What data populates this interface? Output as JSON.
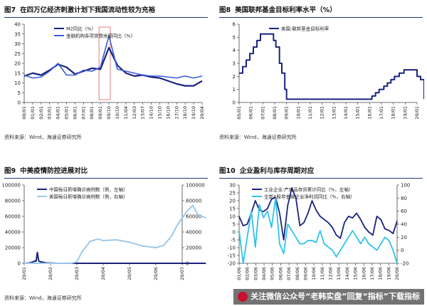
{
  "panels": [
    {
      "fig": "图7",
      "title": "在四万亿经济刺激计划下我国流动性较为充裕",
      "source": "资料来源：Wind，海通证券研究所"
    },
    {
      "fig": "图8",
      "title": "美国联邦基金目标利率水平（%）",
      "source": "资料来源：Wind，海通证券研究所"
    },
    {
      "fig": "图9",
      "title": "中美疫情防控进展对比",
      "source": "资料来源：Wind，海通证券研究所"
    },
    {
      "fig": "图10",
      "title": "企业盈利与库存周期对应",
      "source": ""
    }
  ],
  "watermark": {
    "text": "关注微信公众号“老韩实盘”回复“指标”下载指标"
  },
  "chart_data": [
    {
      "type": "line",
      "ylim": [
        0,
        40
      ],
      "yticks": [
        0,
        5,
        10,
        15,
        20,
        25,
        30,
        35,
        40
      ],
      "x_tick_labels": [
        "00/01",
        "01/01",
        "02/01",
        "03/01",
        "04/01",
        "05/01",
        "06/01",
        "07/01",
        "08/01",
        "09/01",
        "09/10",
        "10/10",
        "11/04",
        "12/03",
        "13/07",
        "14/10",
        "15/10",
        "16/10",
        "17/10",
        "18/10",
        "19/10",
        "20/04"
      ],
      "highlight": {
        "from_index": 9,
        "to_index": 10,
        "color": "#e08080"
      },
      "series": [
        {
          "name": "M2同比（%）",
          "color": "#1a237e",
          "width": 2.2,
          "values": [
            13.5,
            15,
            14,
            16.5,
            19.5,
            18,
            14.5,
            16,
            17.5,
            17,
            28,
            19,
            15,
            13.5,
            14,
            13,
            12.5,
            11,
            9.5,
            8.5,
            8.5,
            11
          ]
        },
        {
          "name": "金融机构各项贷款余额同比（%）",
          "color": "#3b5bdb",
          "width": 1.6,
          "values": [
            14,
            12.5,
            13,
            16,
            20,
            14,
            14,
            16.5,
            16,
            18,
            34,
            17,
            16,
            15,
            14,
            13.5,
            13.5,
            13,
            12.5,
            13.5,
            12.5,
            13.5
          ]
        }
      ]
    },
    {
      "type": "line",
      "ylim": [
        0,
        6
      ],
      "yticks": [
        0,
        1,
        2,
        3,
        4,
        5,
        6
      ],
      "x_tick_labels": [
        "05/01",
        "06/01",
        "07/01",
        "08/01",
        "09/01",
        "10/01",
        "11/01",
        "12/01",
        "13/01",
        "14/01",
        "15/01",
        "16/01",
        "17/01",
        "18/01",
        "19/01",
        "20/01"
      ],
      "step": true,
      "series": [
        {
          "name": "美国:联邦基金目标利率",
          "color": "#1a237e",
          "width": 2,
          "x": [
            0,
            0.3,
            0.6,
            0.9,
            1.2,
            1.5,
            1.8,
            2.3,
            2.7,
            2.9,
            3.1,
            3.4,
            3.6,
            3.85,
            4,
            4.5,
            5,
            6,
            7,
            8,
            9,
            10,
            10.9,
            11.2,
            11.5,
            11.8,
            12.2,
            12.5,
            12.8,
            13.1,
            13.5,
            13.9,
            14.6,
            15,
            15.3,
            15.6
          ],
          "values": [
            2.25,
            2.75,
            3.25,
            3.75,
            4.25,
            4.75,
            5.25,
            5.25,
            5.25,
            4.75,
            4.25,
            3.0,
            2.25,
            1.0,
            0.25,
            0.25,
            0.25,
            0.25,
            0.25,
            0.25,
            0.25,
            0.25,
            0.25,
            0.5,
            0.75,
            1.0,
            1.25,
            1.5,
            1.75,
            2.0,
            2.25,
            2.5,
            2.5,
            2.0,
            1.75,
            0.25
          ]
        }
      ]
    },
    {
      "type": "line",
      "ylim_left": [
        0,
        100000
      ],
      "yticks_left": [
        0,
        20000,
        40000,
        60000,
        80000,
        100000
      ],
      "ylim_right": [
        0,
        100000
      ],
      "yticks_right": [
        0,
        20000,
        40000,
        60000,
        80000,
        100000
      ],
      "x_tick_labels": [
        "20/01",
        "20/02",
        "20/03",
        "20/04",
        "20/05",
        "20/06",
        "20/07"
      ],
      "series": [
        {
          "name": "中国每日新增确诊病例数（例，左轴）",
          "color": "#1a237e",
          "width": 2,
          "axis": "left",
          "x": [
            0,
            0.2,
            0.35,
            0.4,
            0.45,
            0.5,
            0.55,
            0.6,
            0.7,
            0.8,
            0.9,
            1.0,
            1.2,
            1.5,
            2,
            3,
            4,
            5,
            6,
            6.9
          ],
          "values": [
            0,
            500,
            2000,
            3000,
            2500,
            14000,
            3000,
            2000,
            1500,
            800,
            400,
            300,
            100,
            40,
            30,
            30,
            20,
            20,
            30,
            20
          ]
        },
        {
          "name": "美国每日新增确诊病例数（例，右轴）",
          "color": "#9ec9e8",
          "width": 2,
          "axis": "right",
          "x": [
            0,
            1,
            1.8,
            2.0,
            2.2,
            2.5,
            2.8,
            3.0,
            3.5,
            4.0,
            4.5,
            5.0,
            5.3,
            5.6,
            5.8,
            6.0,
            6.2,
            6.4,
            6.6,
            6.9
          ],
          "values": [
            0,
            0,
            100,
            2000,
            15000,
            28000,
            31000,
            29000,
            30000,
            27000,
            22000,
            20000,
            23000,
            35000,
            48000,
            58000,
            67000,
            74000,
            62000,
            58000
          ]
        }
      ]
    },
    {
      "type": "line",
      "ylim_left": [
        -20,
        30
      ],
      "yticks_left": [
        -20,
        -15,
        -10,
        -5,
        0,
        5,
        10,
        15,
        20,
        25,
        30
      ],
      "ylim_right": [
        -20,
        100
      ],
      "yticks_right": [
        -20,
        0,
        20,
        40,
        60,
        80,
        100
      ],
      "x_tick_labels": [
        "01/06",
        "02/06",
        "03/06",
        "04/06",
        "05/06",
        "06/06",
        "07/06",
        "08/06",
        "09/06",
        "10/06",
        "11/06",
        "12/06",
        "13/06",
        "14/06",
        "15/06",
        "16/06",
        "17/06",
        "18/06",
        "19/06",
        "20/06"
      ],
      "series": [
        {
          "name": "工业企业:产成品存货累计同比（%，左轴）",
          "color": "#1a237e",
          "width": 1.8,
          "axis": "left",
          "values": [
            10,
            4,
            5,
            12,
            20,
            14,
            13,
            15,
            21,
            22,
            12,
            -5,
            17,
            28,
            22,
            4,
            6,
            12,
            20,
            14,
            10,
            8,
            6,
            3,
            -2,
            -4,
            6,
            10,
            9,
            12,
            8,
            3,
            0,
            -2,
            10,
            8,
            2,
            1,
            -1,
            7
          ]
        },
        {
          "name": "全部A股非金融企业净利润同比（%，右轴）",
          "color": "#2ec4e8",
          "width": 1.8,
          "axis": "right",
          "values": [
            30,
            -20,
            20,
            60,
            5,
            70,
            50,
            60,
            35,
            80,
            10,
            -5,
            40,
            30,
            20,
            10,
            10,
            15,
            15,
            12,
            30,
            10,
            5,
            0,
            -10,
            0,
            10,
            20,
            30,
            20,
            10,
            20,
            10,
            5,
            0,
            10,
            20,
            15,
            0,
            -20
          ]
        }
      ]
    }
  ]
}
